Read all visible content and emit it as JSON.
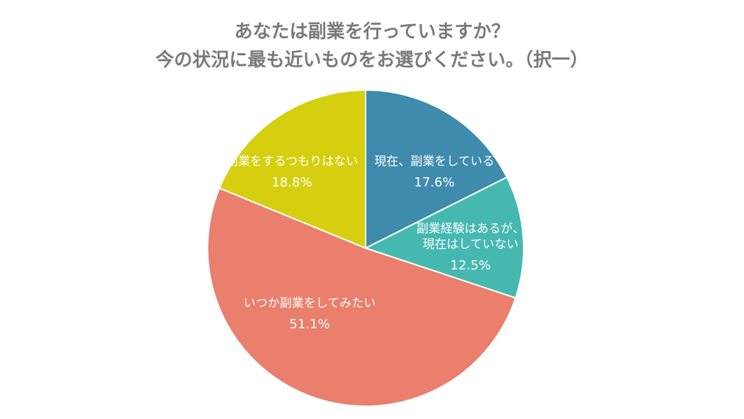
{
  "chart_data": {
    "type": "pie",
    "title_lines": [
      "あなたは副業を行っていますか？",
      "今の状況に最も近いものをお選びください。（択一）"
    ],
    "slices": [
      {
        "label_lines": [
          "現在、副業をしている"
        ],
        "value": 17.6,
        "value_label": "17.6%",
        "color": "#3e8bad"
      },
      {
        "label_lines": [
          "副業経験はあるが、",
          "現在はしていない"
        ],
        "value": 12.5,
        "value_label": "12.5%",
        "color": "#45b8b0"
      },
      {
        "label_lines": [
          "いつか副業をしてみたい"
        ],
        "value": 51.1,
        "value_label": "51.1%",
        "color": "#e97f6c"
      },
      {
        "label_lines": [
          "副業をするつもりはない"
        ],
        "value": 18.8,
        "value_label": "18.8%",
        "color": "#d5cf0f"
      }
    ],
    "start_position": "top",
    "direction": "clockwise",
    "legend": "none"
  }
}
